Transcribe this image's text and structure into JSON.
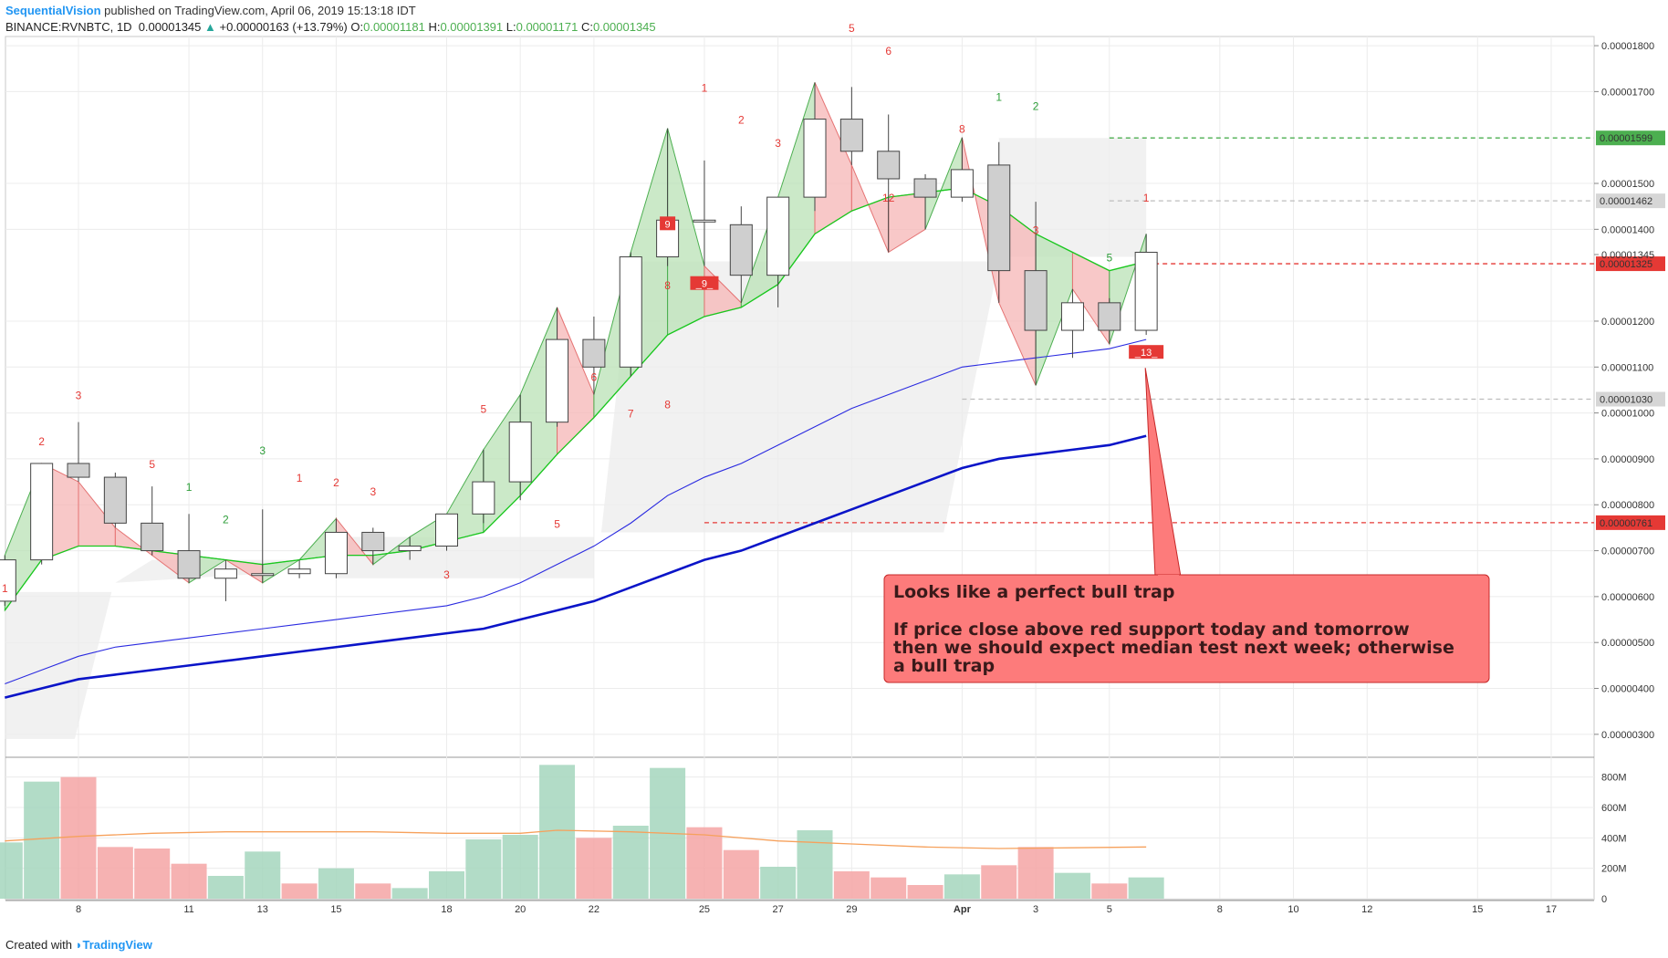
{
  "header": {
    "author": "SequentialVision",
    "published": "published on TradingView.com, April 06, 2019 15:13:18 IDT",
    "symbol": "BINANCE:RVNBTC, 1D",
    "last": "0.00001345",
    "change": "+0.00000163 (+13.79%)",
    "open_label": "O:",
    "open": "0.00001181",
    "high_label": "H:",
    "high": "0.00001391",
    "low_label": "L:",
    "low": "0.00001171",
    "close_label": "C:",
    "close": "0.00001345"
  },
  "footer": {
    "created": "Created with",
    "brand": "TradingView"
  },
  "colors": {
    "bull_fill": "#ffffff",
    "bear_fill": "#cfcfcf",
    "candle_edge": "#444444",
    "ma_green": "#19c81e",
    "ma_blue_thin": "#2a2ae0",
    "ma_blue_thick": "#0a14c8",
    "vol_up": "#a5d6bd",
    "vol_down": "#f5a5a5",
    "vol_ma": "#f6a15c",
    "support_red": "#e53935",
    "resistance_green": "#4caf50",
    "annotation_bg": "#fd7b7b",
    "annotation_border": "#c62828"
  },
  "chart_data": {
    "type": "candlestick",
    "y_scale": "linear",
    "ylim": [
      2.5e-06,
      1.82e-05
    ],
    "grid": true,
    "y_ticks": [
      "0.00001800",
      "0.00001700",
      "0.00001500",
      "0.00001400",
      "0.00001345",
      "0.00001200",
      "0.00001100",
      "0.00001000",
      "0.00000900",
      "0.00000800",
      "0.00000700",
      "0.00000600",
      "0.00000500",
      "0.00000400",
      "0.00000300"
    ],
    "y_tick_values": [
      1.8e-05,
      1.7e-05,
      1.5e-05,
      1.4e-05,
      1.345e-05,
      1.2e-05,
      1.1e-05,
      1e-05,
      9e-06,
      8e-06,
      7e-06,
      6e-06,
      5e-06,
      4e-06,
      3e-06
    ],
    "x_ticks": [
      {
        "label": "8",
        "day": 8
      },
      {
        "label": "11",
        "day": 11
      },
      {
        "label": "13",
        "day": 13
      },
      {
        "label": "15",
        "day": 15
      },
      {
        "label": "18",
        "day": 18
      },
      {
        "label": "20",
        "day": 20
      },
      {
        "label": "22",
        "day": 22
      },
      {
        "label": "25",
        "day": 25
      },
      {
        "label": "27",
        "day": 27
      },
      {
        "label": "29",
        "day": 29
      },
      {
        "label": "Apr",
        "day": 32,
        "bold": true
      },
      {
        "label": "3",
        "day": 34
      },
      {
        "label": "5",
        "day": 36
      },
      {
        "label": "8",
        "day": 39
      },
      {
        "label": "10",
        "day": 41
      },
      {
        "label": "12",
        "day": 43
      },
      {
        "label": "15",
        "day": 46
      },
      {
        "label": "17",
        "day": 48
      }
    ],
    "candles": [
      {
        "d": 6,
        "o": 5.9e-06,
        "h": 6.9e-06,
        "l": 5.8e-06,
        "c": 6.8e-06
      },
      {
        "d": 7,
        "o": 6.8e-06,
        "h": 8.9e-06,
        "l": 6.7e-06,
        "c": 8.9e-06
      },
      {
        "d": 8,
        "o": 8.9e-06,
        "h": 9.8e-06,
        "l": 8.5e-06,
        "c": 8.6e-06
      },
      {
        "d": 9,
        "o": 8.6e-06,
        "h": 8.7e-06,
        "l": 7.5e-06,
        "c": 7.6e-06
      },
      {
        "d": 10,
        "o": 7.6e-06,
        "h": 8.4e-06,
        "l": 6.9e-06,
        "c": 7e-06
      },
      {
        "d": 11,
        "o": 7e-06,
        "h": 7.8e-06,
        "l": 6.3e-06,
        "c": 6.4e-06
      },
      {
        "d": 12,
        "o": 6.4e-06,
        "h": 6.8e-06,
        "l": 5.9e-06,
        "c": 6.6e-06
      },
      {
        "d": 13,
        "o": 6.5e-06,
        "h": 7.9e-06,
        "l": 6.3e-06,
        "c": 6.5e-06
      },
      {
        "d": 14,
        "o": 6.5e-06,
        "h": 6.8e-06,
        "l": 6.4e-06,
        "c": 6.6e-06
      },
      {
        "d": 15,
        "o": 6.5e-06,
        "h": 7.7e-06,
        "l": 6.4e-06,
        "c": 7.4e-06
      },
      {
        "d": 16,
        "o": 7.4e-06,
        "h": 7.5e-06,
        "l": 6.7e-06,
        "c": 7e-06
      },
      {
        "d": 17,
        "o": 7e-06,
        "h": 7.3e-06,
        "l": 6.8e-06,
        "c": 7.1e-06
      },
      {
        "d": 18,
        "o": 7.1e-06,
        "h": 7.8e-06,
        "l": 7e-06,
        "c": 7.8e-06
      },
      {
        "d": 19,
        "o": 7.8e-06,
        "h": 9.2e-06,
        "l": 7.6e-06,
        "c": 8.5e-06
      },
      {
        "d": 20,
        "o": 8.5e-06,
        "h": 1.04e-05,
        "l": 8.1e-06,
        "c": 9.8e-06
      },
      {
        "d": 21,
        "o": 9.8e-06,
        "h": 1.23e-05,
        "l": 9.7e-06,
        "c": 1.16e-05
      },
      {
        "d": 22,
        "o": 1.16e-05,
        "h": 1.21e-05,
        "l": 1.04e-05,
        "c": 1.1e-05
      },
      {
        "d": 23,
        "o": 1.1e-05,
        "h": 1.35e-05,
        "l": 1.08e-05,
        "c": 1.34e-05
      },
      {
        "d": 24,
        "o": 1.34e-05,
        "h": 1.62e-05,
        "l": 1.32e-05,
        "c": 1.42e-05
      },
      {
        "d": 25,
        "o": 1.42e-05,
        "h": 1.55e-05,
        "l": 1.32e-05,
        "c": 1.42e-05
      },
      {
        "d": 26,
        "o": 1.41e-05,
        "h": 1.45e-05,
        "l": 1.24e-05,
        "c": 1.3e-05
      },
      {
        "d": 27,
        "o": 1.3e-05,
        "h": 1.47e-05,
        "l": 1.23e-05,
        "c": 1.47e-05
      },
      {
        "d": 28,
        "o": 1.47e-05,
        "h": 1.72e-05,
        "l": 1.44e-05,
        "c": 1.64e-05
      },
      {
        "d": 29,
        "o": 1.64e-05,
        "h": 1.71e-05,
        "l": 1.54e-05,
        "c": 1.57e-05
      },
      {
        "d": 30,
        "o": 1.57e-05,
        "h": 1.65e-05,
        "l": 1.35e-05,
        "c": 1.51e-05
      },
      {
        "d": 31,
        "o": 1.51e-05,
        "h": 1.52e-05,
        "l": 1.4e-05,
        "c": 1.47e-05
      },
      {
        "d": 32,
        "o": 1.47e-05,
        "h": 1.6e-05,
        "l": 1.46e-05,
        "c": 1.53e-05
      },
      {
        "d": 33,
        "o": 1.54e-05,
        "h": 1.59e-05,
        "l": 1.24e-05,
        "c": 1.31e-05
      },
      {
        "d": 34,
        "o": 1.31e-05,
        "h": 1.46e-05,
        "l": 1.06e-05,
        "c": 1.18e-05
      },
      {
        "d": 35,
        "o": 1.18e-05,
        "h": 1.27e-05,
        "l": 1.12e-05,
        "c": 1.24e-05
      },
      {
        "d": 36,
        "o": 1.24e-05,
        "h": 1.25e-05,
        "l": 1.15e-05,
        "c": 1.18e-05
      },
      {
        "d": 37,
        "o": 1.18e-05,
        "h": 1.39e-05,
        "l": 1.17e-05,
        "c": 1.35e-05
      }
    ],
    "ma_fast": {
      "name": "",
      "values": [
        [
          6,
          5.7e-06
        ],
        [
          7,
          6.8e-06
        ],
        [
          8,
          7.1e-06
        ],
        [
          9,
          7.1e-06
        ],
        [
          10,
          7e-06
        ],
        [
          11,
          6.9e-06
        ],
        [
          12,
          6.8e-06
        ],
        [
          13,
          6.7e-06
        ],
        [
          14,
          6.8e-06
        ],
        [
          15,
          6.9e-06
        ],
        [
          16,
          6.9e-06
        ],
        [
          17,
          7e-06
        ],
        [
          18,
          7.2e-06
        ],
        [
          19,
          7.4e-06
        ],
        [
          20,
          8.2e-06
        ],
        [
          21,
          9.1e-06
        ],
        [
          22,
          9.9e-06
        ],
        [
          23,
          1.08e-05
        ],
        [
          24,
          1.17e-05
        ],
        [
          25,
          1.21e-05
        ],
        [
          26,
          1.23e-05
        ],
        [
          27,
          1.28e-05
        ],
        [
          28,
          1.39e-05
        ],
        [
          29,
          1.44e-05
        ],
        [
          30,
          1.47e-05
        ],
        [
          31,
          1.48e-05
        ],
        [
          32,
          1.49e-05
        ],
        [
          33,
          1.45e-05
        ],
        [
          34,
          1.39e-05
        ],
        [
          35,
          1.35e-05
        ],
        [
          36,
          1.31e-05
        ],
        [
          37,
          1.33e-05
        ]
      ]
    },
    "ma_mid": {
      "name": "",
      "values": [
        [
          6,
          4.1e-06
        ],
        [
          7,
          4.4e-06
        ],
        [
          8,
          4.7e-06
        ],
        [
          9,
          4.9e-06
        ],
        [
          10,
          5e-06
        ],
        [
          11,
          5.1e-06
        ],
        [
          12,
          5.2e-06
        ],
        [
          13,
          5.3e-06
        ],
        [
          14,
          5.4e-06
        ],
        [
          15,
          5.5e-06
        ],
        [
          16,
          5.6e-06
        ],
        [
          17,
          5.7e-06
        ],
        [
          18,
          5.8e-06
        ],
        [
          19,
          6e-06
        ],
        [
          20,
          6.3e-06
        ],
        [
          21,
          6.7e-06
        ],
        [
          22,
          7.1e-06
        ],
        [
          23,
          7.6e-06
        ],
        [
          24,
          8.2e-06
        ],
        [
          25,
          8.6e-06
        ],
        [
          26,
          8.9e-06
        ],
        [
          27,
          9.3e-06
        ],
        [
          28,
          9.7e-06
        ],
        [
          29,
          1.01e-05
        ],
        [
          30,
          1.04e-05
        ],
        [
          31,
          1.07e-05
        ],
        [
          32,
          1.1e-05
        ],
        [
          33,
          1.11e-05
        ],
        [
          34,
          1.12e-05
        ],
        [
          35,
          1.13e-05
        ],
        [
          36,
          1.14e-05
        ],
        [
          37,
          1.16e-05
        ]
      ]
    },
    "ma_slow": {
      "name": "",
      "values": [
        [
          6,
          3.8e-06
        ],
        [
          7,
          4e-06
        ],
        [
          8,
          4.2e-06
        ],
        [
          9,
          4.3e-06
        ],
        [
          10,
          4.4e-06
        ],
        [
          11,
          4.5e-06
        ],
        [
          12,
          4.6e-06
        ],
        [
          13,
          4.7e-06
        ],
        [
          14,
          4.8e-06
        ],
        [
          15,
          4.9e-06
        ],
        [
          16,
          5e-06
        ],
        [
          17,
          5.1e-06
        ],
        [
          18,
          5.2e-06
        ],
        [
          19,
          5.3e-06
        ],
        [
          20,
          5.5e-06
        ],
        [
          21,
          5.7e-06
        ],
        [
          22,
          5.9e-06
        ],
        [
          23,
          6.2e-06
        ],
        [
          24,
          6.5e-06
        ],
        [
          25,
          6.8e-06
        ],
        [
          26,
          7e-06
        ],
        [
          27,
          7.3e-06
        ],
        [
          28,
          7.6e-06
        ],
        [
          29,
          7.9e-06
        ],
        [
          30,
          8.2e-06
        ],
        [
          31,
          8.5e-06
        ],
        [
          32,
          8.8e-06
        ],
        [
          33,
          9e-06
        ],
        [
          34,
          9.1e-06
        ],
        [
          35,
          9.2e-06
        ],
        [
          36,
          9.3e-06
        ],
        [
          37,
          9.5e-06
        ]
      ]
    },
    "price_labels": [
      {
        "value": 1.599e-05,
        "text": "0.00001599",
        "bg": "#4caf50",
        "fg": "#ffffff",
        "line": "dashed-green",
        "from_day": 36
      },
      {
        "value": 1.462e-05,
        "text": "0.00001462",
        "bg": "#d6d6d6",
        "fg": "#222222",
        "line": "dashed-grey",
        "from_day": 36
      },
      {
        "value": 1.325e-05,
        "text": "0.00001325",
        "bg": "#e53935",
        "fg": "#ffffff",
        "line": "dashed-red",
        "from_day": 37
      },
      {
        "value": 1.03e-05,
        "text": "0.00001030",
        "bg": "#d6d6d6",
        "fg": "#222222",
        "line": "dashed-grey",
        "from_day": 32
      },
      {
        "value": 7.61e-06,
        "text": "0.00000761",
        "bg": "#e53935",
        "fg": "#ffffff",
        "line": "dashed-red",
        "from_day": 25
      }
    ],
    "counts_buy": [
      {
        "t": "1",
        "d": 6,
        "v": 6.1e-06
      },
      {
        "t": "2",
        "d": 7,
        "v": 9.3e-06
      },
      {
        "t": "3",
        "d": 8,
        "v": 1.03e-05
      },
      {
        "t": "5",
        "d": 10,
        "v": 8.8e-06
      },
      {
        "t": "1",
        "d": 14,
        "v": 8.5e-06
      },
      {
        "t": "2",
        "d": 15,
        "v": 8.4e-06
      },
      {
        "t": "3",
        "d": 16,
        "v": 8.2e-06
      },
      {
        "t": "3",
        "d": 18,
        "v": 6.4e-06
      },
      {
        "t": "5",
        "d": 19,
        "v": 1e-05
      },
      {
        "t": "5",
        "d": 21,
        "v": 7.5e-06
      },
      {
        "t": "6",
        "d": 22,
        "v": 1.07e-05
      },
      {
        "t": "7",
        "d": 23,
        "v": 9.9e-06
      },
      {
        "t": "8",
        "d": 24,
        "v": 1.27e-05
      },
      {
        "t": "8",
        "d": 24,
        "v": 1.01e-05
      },
      {
        "t": "1",
        "d": 25,
        "v": 1.7e-05
      },
      {
        "t": "2",
        "d": 26,
        "v": 1.63e-05
      },
      {
        "t": "3",
        "d": 27,
        "v": 1.58e-05
      },
      {
        "t": "5",
        "d": 29,
        "v": 1.83e-05
      },
      {
        "t": "6",
        "d": 30,
        "v": 1.78e-05
      },
      {
        "t": "12",
        "d": 30,
        "v": 1.46e-05
      },
      {
        "t": "8",
        "d": 32,
        "v": 1.61e-05
      },
      {
        "t": "3",
        "d": 34,
        "v": 1.39e-05
      },
      {
        "t": "1",
        "d": 37,
        "v": 1.46e-05
      }
    ],
    "counts_sell": [
      {
        "t": "1",
        "d": 11,
        "v": 8.3e-06
      },
      {
        "t": "2",
        "d": 12,
        "v": 7.6e-06
      },
      {
        "t": "3",
        "d": 13,
        "v": 9.1e-06
      },
      {
        "t": "1",
        "d": 33,
        "v": 1.68e-05
      },
      {
        "t": "2",
        "d": 34,
        "v": 1.66e-05
      },
      {
        "t": "5",
        "d": 36,
        "v": 1.33e-05
      }
    ],
    "markers": [
      {
        "text": "9",
        "d": 24,
        "v": 1.41e-05,
        "bg": "#e53935"
      },
      {
        "text": "_9_",
        "d": 25,
        "v": 1.28e-05,
        "bg": "#e53935"
      },
      {
        "text": "_13_",
        "d": 37,
        "v": 1.13e-05,
        "bg": "#e53935"
      }
    ],
    "annotation": {
      "line1": "Looks like a perfect bull trap",
      "line2": "If price close above red support today and tomorrow",
      "line3": "then we should expect median test next week; otherwise",
      "line4": "a bull trap"
    },
    "volume": {
      "ylim": [
        0,
        900
      ],
      "unit": "M",
      "ticks": [
        "800M",
        "600M",
        "400M",
        "200M",
        "0"
      ],
      "tick_values": [
        800,
        600,
        400,
        200,
        0
      ],
      "bars": [
        {
          "d": 6,
          "v": 370,
          "up": true
        },
        {
          "d": 7,
          "v": 770,
          "up": true
        },
        {
          "d": 8,
          "v": 800,
          "up": false
        },
        {
          "d": 9,
          "v": 340,
          "up": false
        },
        {
          "d": 10,
          "v": 330,
          "up": false
        },
        {
          "d": 11,
          "v": 230,
          "up": false
        },
        {
          "d": 12,
          "v": 150,
          "up": true
        },
        {
          "d": 13,
          "v": 310,
          "up": true
        },
        {
          "d": 14,
          "v": 100,
          "up": false
        },
        {
          "d": 15,
          "v": 200,
          "up": true
        },
        {
          "d": 16,
          "v": 100,
          "up": false
        },
        {
          "d": 17,
          "v": 70,
          "up": true
        },
        {
          "d": 18,
          "v": 180,
          "up": true
        },
        {
          "d": 19,
          "v": 390,
          "up": true
        },
        {
          "d": 20,
          "v": 420,
          "up": true
        },
        {
          "d": 21,
          "v": 880,
          "up": true
        },
        {
          "d": 22,
          "v": 400,
          "up": false
        },
        {
          "d": 23,
          "v": 480,
          "up": true
        },
        {
          "d": 24,
          "v": 860,
          "up": true
        },
        {
          "d": 25,
          "v": 470,
          "up": false
        },
        {
          "d": 26,
          "v": 320,
          "up": false
        },
        {
          "d": 27,
          "v": 210,
          "up": true
        },
        {
          "d": 28,
          "v": 450,
          "up": true
        },
        {
          "d": 29,
          "v": 180,
          "up": false
        },
        {
          "d": 30,
          "v": 140,
          "up": false
        },
        {
          "d": 31,
          "v": 90,
          "up": false
        },
        {
          "d": 32,
          "v": 160,
          "up": true
        },
        {
          "d": 33,
          "v": 220,
          "up": false
        },
        {
          "d": 34,
          "v": 340,
          "up": false
        },
        {
          "d": 35,
          "v": 170,
          "up": true
        },
        {
          "d": 36,
          "v": 100,
          "up": false
        },
        {
          "d": 37,
          "v": 140,
          "up": true
        }
      ],
      "ma": [
        [
          6,
          380
        ],
        [
          8,
          410
        ],
        [
          10,
          430
        ],
        [
          12,
          440
        ],
        [
          14,
          440
        ],
        [
          16,
          440
        ],
        [
          18,
          430
        ],
        [
          20,
          430
        ],
        [
          21,
          450
        ],
        [
          23,
          440
        ],
        [
          25,
          420
        ],
        [
          27,
          380
        ],
        [
          29,
          360
        ],
        [
          31,
          340
        ],
        [
          33,
          330
        ],
        [
          35,
          335
        ],
        [
          37,
          340
        ]
      ]
    }
  }
}
